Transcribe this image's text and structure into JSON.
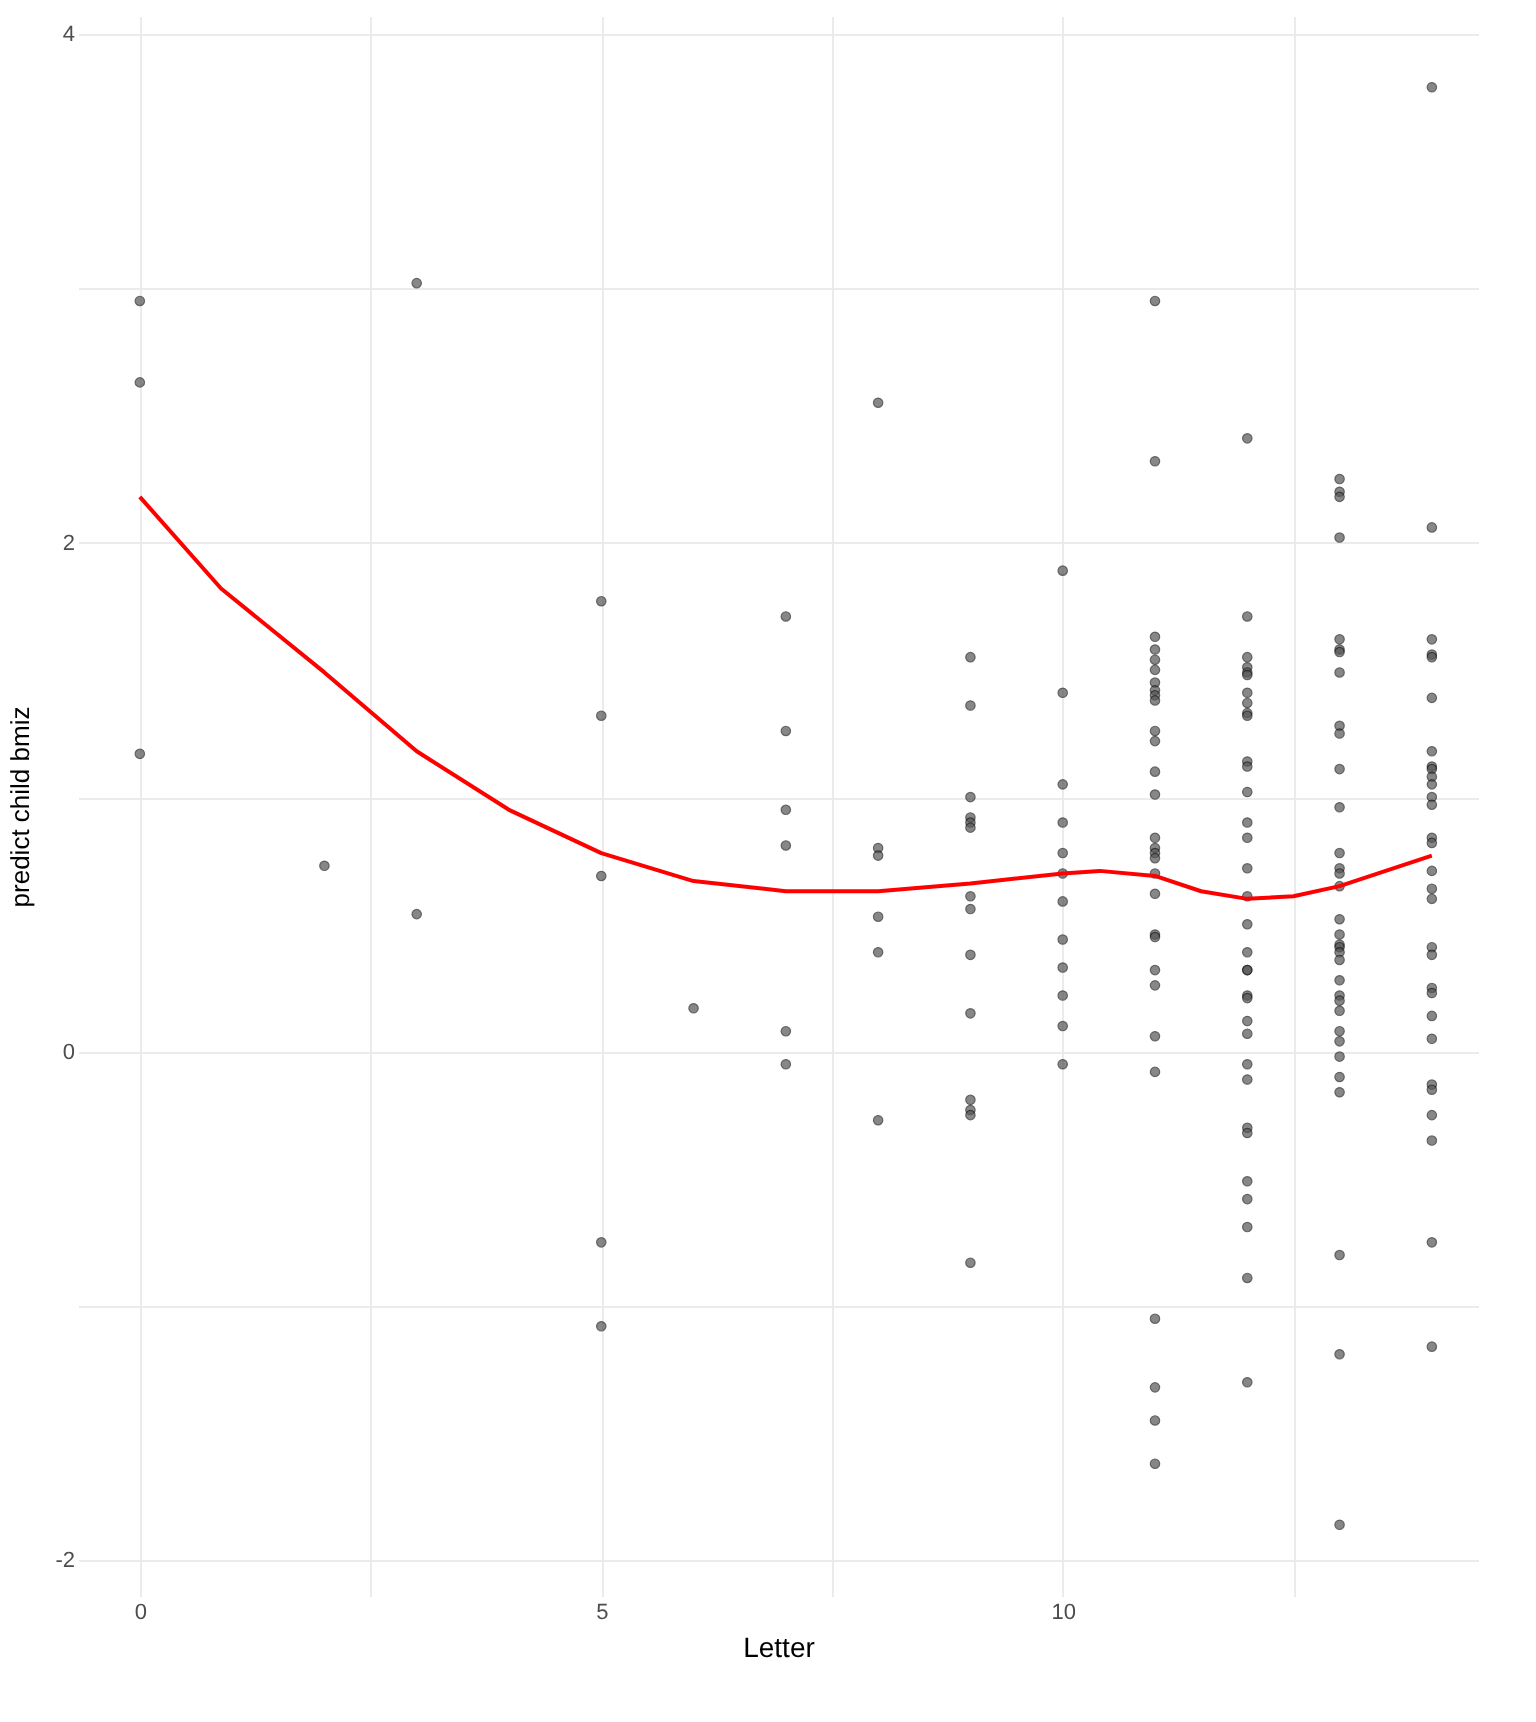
{
  "chart_data": {
    "type": "scatter",
    "xlabel": "Letter",
    "ylabel": "predict child bmiz",
    "xlim": [
      -0.67,
      14.5
    ],
    "ylim": [
      -2.14,
      4.07
    ],
    "xticks": [
      0,
      {
        "value": 2.5,
        "label": null
      },
      5,
      {
        "value": 7.5,
        "label": null
      },
      10,
      {
        "value": 12.5,
        "label": null
      }
    ],
    "yticks": [
      -2,
      {
        "value": -1,
        "label": null
      },
      0,
      {
        "value": 1,
        "label": null
      },
      2,
      {
        "value": 3,
        "label": null
      },
      4
    ],
    "grid": true,
    "series": [
      {
        "marker": "circle",
        "color": "#555555",
        "x": [
          0,
          0,
          0,
          2,
          3,
          3,
          5,
          5,
          5,
          5,
          5,
          6,
          7,
          7,
          7,
          7,
          7,
          7,
          8,
          8,
          8,
          8,
          8,
          8,
          9,
          9,
          9,
          9,
          9,
          9,
          9,
          9,
          9,
          9,
          9,
          9,
          9,
          9,
          10,
          10,
          10,
          10,
          10,
          10,
          10,
          10,
          10,
          10,
          10,
          10,
          11,
          11,
          11,
          11,
          11,
          11,
          11,
          11,
          11,
          11,
          11,
          11,
          11,
          11,
          11,
          11,
          11,
          11,
          11,
          11,
          11,
          11,
          11,
          11,
          11,
          11,
          11,
          11,
          11,
          11,
          12,
          12,
          12,
          12,
          12,
          12,
          12,
          12,
          12,
          12,
          12,
          12,
          12,
          12,
          12,
          12,
          12,
          12,
          12,
          12,
          12,
          12,
          12,
          12,
          12,
          12,
          12,
          12,
          12,
          12,
          12,
          12,
          12,
          12,
          13,
          13,
          13,
          13,
          13,
          13,
          13,
          13,
          13,
          13,
          13,
          13,
          13,
          13,
          13,
          13,
          13,
          13,
          13,
          13,
          13,
          13,
          13,
          13,
          13,
          13,
          13,
          13,
          13,
          13,
          13,
          13,
          13,
          13,
          14,
          14,
          14,
          14,
          14,
          14,
          14,
          14,
          14,
          14,
          14,
          14,
          14,
          14,
          14,
          14,
          14,
          14,
          14,
          14,
          14,
          14,
          14,
          14,
          14,
          14,
          14,
          14,
          14,
          14
        ],
        "values": [
          2.95,
          2.63,
          1.17,
          0.73,
          3.02,
          0.54,
          1.77,
          1.32,
          0.69,
          -0.75,
          -1.08,
          0.17,
          1.71,
          1.26,
          0.95,
          0.81,
          0.08,
          -0.05,
          2.55,
          0.8,
          0.77,
          0.53,
          0.39,
          -0.27,
          1.55,
          1.36,
          1.0,
          0.92,
          0.9,
          0.88,
          0.61,
          0.56,
          0.38,
          0.15,
          -0.19,
          -0.23,
          -0.25,
          -0.83,
          1.89,
          1.41,
          1.05,
          0.9,
          0.78,
          0.7,
          0.59,
          0.44,
          0.33,
          0.22,
          0.1,
          -0.05,
          2.95,
          2.32,
          1.63,
          1.58,
          1.54,
          1.5,
          1.45,
          1.42,
          1.4,
          1.38,
          1.26,
          1.22,
          1.1,
          1.01,
          0.84,
          0.8,
          0.78,
          0.76,
          0.62,
          0.46,
          0.45,
          0.32,
          0.26,
          0.06,
          -0.08,
          -1.05,
          -1.32,
          -1.45,
          -1.62,
          0.7,
          2.41,
          1.71,
          1.55,
          1.51,
          1.49,
          1.48,
          1.41,
          1.37,
          1.33,
          1.32,
          1.14,
          1.12,
          1.02,
          0.9,
          0.84,
          0.72,
          0.61,
          0.5,
          0.39,
          0.32,
          0.32,
          0.22,
          0.21,
          0.12,
          0.07,
          -0.05,
          -0.11,
          -0.3,
          -0.32,
          -0.51,
          -0.58,
          -0.69,
          -0.89,
          -1.3,
          2.25,
          2.2,
          2.18,
          2.02,
          1.62,
          1.58,
          1.57,
          1.49,
          1.28,
          1.25,
          1.11,
          0.96,
          0.78,
          0.72,
          0.7,
          0.65,
          0.52,
          0.46,
          0.42,
          0.41,
          0.39,
          0.36,
          0.28,
          0.22,
          0.2,
          0.16,
          0.08,
          0.04,
          -0.02,
          -0.1,
          -0.16,
          -0.8,
          -1.19,
          -1.86,
          3.79,
          2.06,
          1.62,
          1.56,
          1.55,
          1.39,
          1.18,
          1.12,
          1.11,
          1.08,
          1.05,
          1.0,
          0.97,
          0.84,
          0.82,
          0.71,
          0.64,
          0.6,
          0.41,
          0.38,
          0.25,
          0.23,
          0.14,
          0.05,
          -0.13,
          -0.15,
          -0.25,
          -0.35,
          -0.75,
          -1.16
        ]
      },
      {
        "type": "line",
        "color": "#ff0000",
        "line_style": "solid",
        "x": [
          0,
          0.88,
          2,
          3,
          4,
          5,
          6,
          7,
          8,
          9,
          10,
          10.4,
          11,
          11.5,
          12,
          12.5,
          13,
          14
        ],
        "values": [
          2.18,
          1.82,
          1.49,
          1.18,
          0.95,
          0.78,
          0.67,
          0.63,
          0.63,
          0.66,
          0.7,
          0.71,
          0.69,
          0.63,
          0.6,
          0.61,
          0.65,
          0.77
        ]
      }
    ]
  }
}
